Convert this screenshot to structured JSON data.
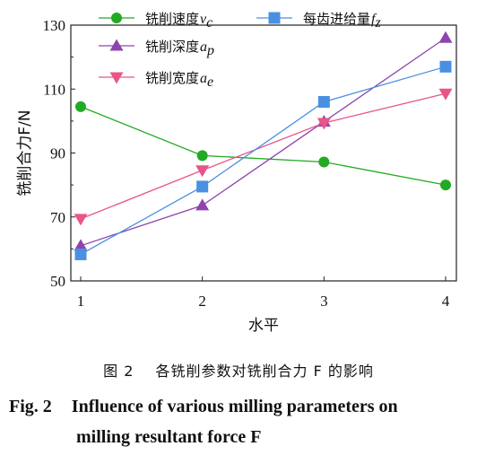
{
  "chart_data": {
    "type": "line",
    "categories": [
      "1",
      "2",
      "3",
      "4"
    ],
    "x": [
      1,
      2,
      3,
      4
    ],
    "xlabel": "水平",
    "ylabel": "铣削合力F/N",
    "ylim": [
      50,
      130
    ],
    "yticks": [
      "50",
      "70",
      "90",
      "110",
      "130"
    ],
    "grid": false,
    "legend_position": "top",
    "series": [
      {
        "name": "铣削速度",
        "symbol": "vc",
        "marker": "circle",
        "color": "#22aa22",
        "values": [
          104.5,
          89.2,
          87.2,
          80.0
        ]
      },
      {
        "name": "铣削深度",
        "symbol": "ap",
        "marker": "triangle-up",
        "color": "#8e44ad",
        "values": [
          61.0,
          73.6,
          99.8,
          126.0
        ]
      },
      {
        "name": "铣削宽度",
        "symbol": "ae",
        "marker": "triangle-down",
        "color": "#e8558a",
        "values": [
          69.4,
          84.6,
          99.4,
          108.6
        ]
      },
      {
        "name": "每齿进给量",
        "symbol": "fz",
        "marker": "square",
        "color": "#4a90e2",
        "values": [
          58.3,
          79.5,
          106.0,
          117.0
        ]
      }
    ]
  },
  "caption": {
    "cn_number": "图 2",
    "cn_text": "各铣削参数对铣削合力 F 的影响",
    "en_number": "Fig. 2",
    "en_line1": "Influence of various milling parameters on",
    "en_line2": "milling resultant force F"
  }
}
